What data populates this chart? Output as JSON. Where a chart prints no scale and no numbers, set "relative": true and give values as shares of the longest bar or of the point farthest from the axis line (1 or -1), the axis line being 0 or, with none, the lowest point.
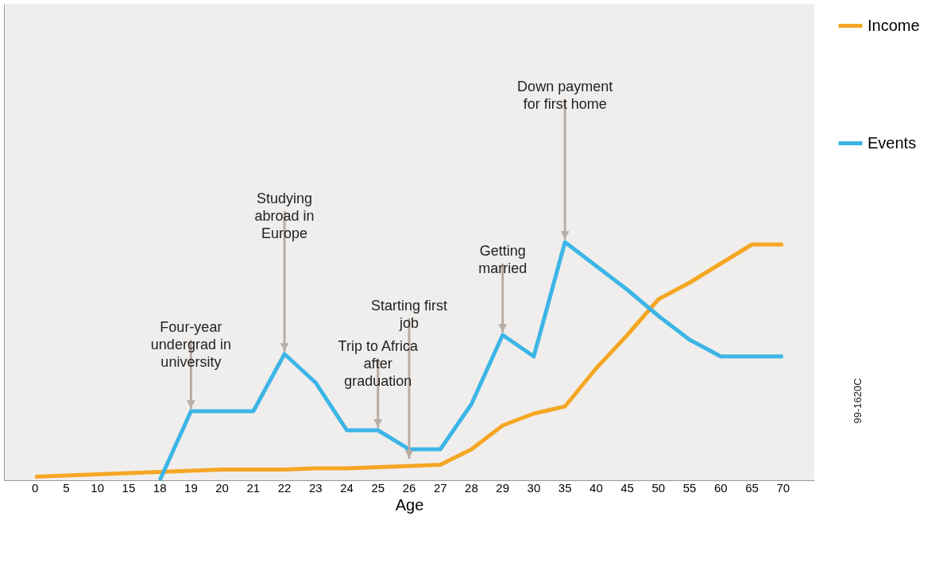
{
  "chart_data": {
    "type": "line",
    "relative": true,
    "xlabel": "Age",
    "legend": "right",
    "grid": false,
    "marker": "none",
    "line_style": "solid",
    "categories": [
      "0",
      "5",
      "10",
      "15",
      "18",
      "19",
      "20",
      "21",
      "22",
      "23",
      "24",
      "25",
      "26",
      "27",
      "28",
      "29",
      "30",
      "35",
      "40",
      "45",
      "50",
      "55",
      "60",
      "65",
      "70"
    ],
    "series": [
      {
        "name": "Income",
        "color": "#f5a623",
        "values": [
          0.015,
          0.02,
          0.025,
          0.03,
          0.035,
          0.04,
          0.045,
          0.045,
          0.045,
          0.05,
          0.05,
          0.055,
          0.06,
          0.065,
          0.13,
          0.23,
          0.28,
          0.31,
          0.47,
          0.61,
          0.76,
          0.83,
          0.91,
          0.99,
          0.99
        ]
      },
      {
        "name": "Events",
        "color": "#3db5e6",
        "values": [
          null,
          null,
          null,
          null,
          0,
          0.29,
          0.29,
          0.29,
          0.53,
          0.41,
          0.21,
          0.21,
          0.13,
          0.13,
          0.32,
          0.61,
          0.52,
          1,
          0.9,
          0.8,
          0.69,
          0.59,
          0.52,
          0.52,
          0.52
        ]
      }
    ],
    "annotations": [
      {
        "text": "Four-year undergrad in university",
        "x": "19",
        "y": 0.29
      },
      {
        "text": "Studying abroad in Europe",
        "x": "22",
        "y": 0.53
      },
      {
        "text": "Trip to Africa after graduation",
        "x": "25",
        "y": 0.21
      },
      {
        "text": "Starting first job",
        "x": "26",
        "y": 0.08
      },
      {
        "text": "Getting married",
        "x": "29",
        "y": 0.61
      },
      {
        "text": "Down payment for first home",
        "x": "35",
        "y": 1.0
      },
      "99-1620C"
    ]
  }
}
